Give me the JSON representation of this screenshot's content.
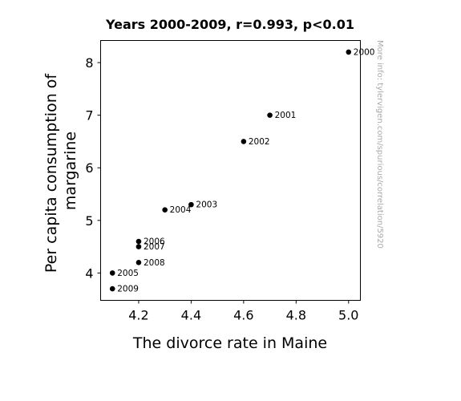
{
  "chart_data": {
    "type": "scatter",
    "title": "Years 2000-2009, r=0.993, p<0.01",
    "xlabel": "The divorce rate in Maine",
    "ylabel_lines": [
      "Per capita consumption of",
      "margarine"
    ],
    "xlim": [
      4.055,
      5.045
    ],
    "ylim": [
      3.48,
      8.42
    ],
    "xticks": [
      4.2,
      4.4,
      4.6,
      4.8,
      5.0
    ],
    "xtick_labels": [
      "4.2",
      "4.4",
      "4.6",
      "4.8",
      "5.0"
    ],
    "yticks": [
      4,
      5,
      6,
      7,
      8
    ],
    "ytick_labels": [
      "4",
      "5",
      "6",
      "7",
      "8"
    ],
    "grid": false,
    "points": [
      {
        "label": "2000",
        "x": 5.0,
        "y": 8.2
      },
      {
        "label": "2001",
        "x": 4.7,
        "y": 7.0
      },
      {
        "label": "2002",
        "x": 4.6,
        "y": 6.5
      },
      {
        "label": "2003",
        "x": 4.4,
        "y": 5.3
      },
      {
        "label": "2004",
        "x": 4.3,
        "y": 5.2
      },
      {
        "label": "2005",
        "x": 4.1,
        "y": 4.0
      },
      {
        "label": "2006",
        "x": 4.2,
        "y": 4.6
      },
      {
        "label": "2007",
        "x": 4.2,
        "y": 4.5
      },
      {
        "label": "2008",
        "x": 4.2,
        "y": 4.2
      },
      {
        "label": "2009",
        "x": 4.1,
        "y": 3.7
      }
    ],
    "marker_color": "#000000"
  },
  "watermark": "More info: tylervigen.com/spurious/correlation/5920"
}
